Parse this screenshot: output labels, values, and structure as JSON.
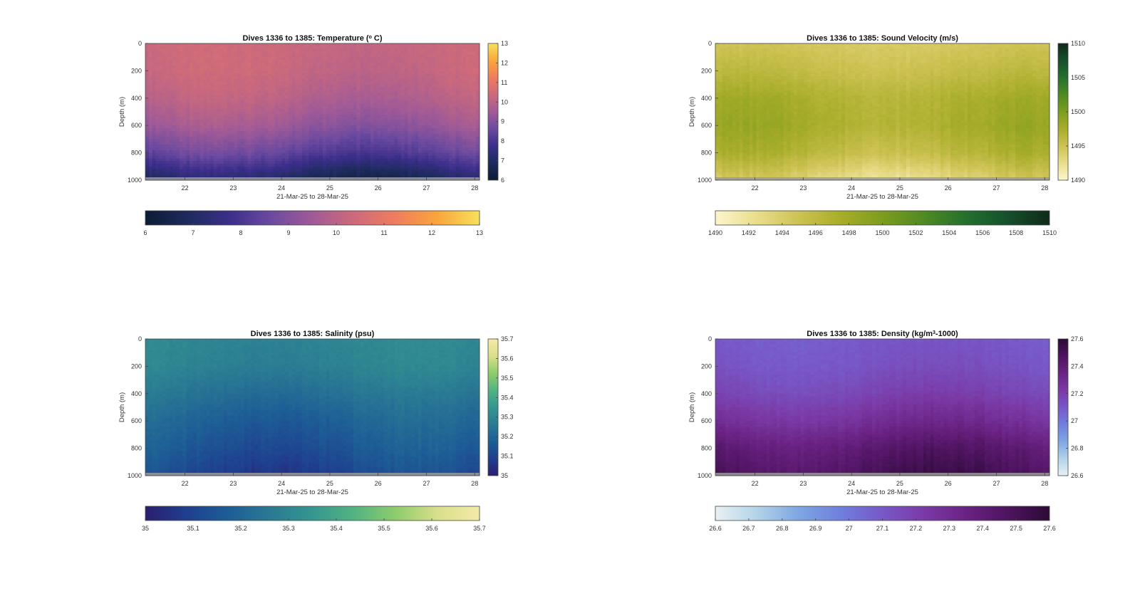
{
  "chart_data": [
    {
      "id": "temperature",
      "type": "heatmap",
      "title": "Dives 1336 to 1385: Temperature (° C)",
      "title_parts": {
        "pre": "Dives 1336 to 1385: Temperature (",
        "sup": "o",
        "post": " C)"
      },
      "xlabel": "21-Mar-25 to 28-Mar-25",
      "ylabel": "Depth (m)",
      "x_ticks": [
        "22",
        "23",
        "24",
        "25",
        "26",
        "27",
        "28"
      ],
      "x_tick_values": [
        22,
        23,
        24,
        25,
        26,
        27,
        28
      ],
      "xlim": [
        21.18,
        28.1
      ],
      "y_ticks": [
        "0",
        "200",
        "400",
        "600",
        "800",
        "1000"
      ],
      "y_tick_values": [
        0,
        200,
        400,
        600,
        800,
        1000
      ],
      "ylim": [
        0,
        1000
      ],
      "colorbar_ticks": [
        "6",
        "7",
        "8",
        "9",
        "10",
        "11",
        "12",
        "13"
      ],
      "horizontal_colorbar_ticks": [
        "6",
        "7",
        "8",
        "9",
        "10",
        "11",
        "12",
        "13"
      ],
      "clim": [
        6,
        13
      ],
      "colormap": [
        "#0d1c33",
        "#1c2b5c",
        "#3b2e8a",
        "#6b4aa0",
        "#a05a97",
        "#cd6a7b",
        "#ef7d5d",
        "#f9a63c",
        "#f7e15c"
      ],
      "depth_profile": [
        {
          "depth": 0,
          "value": 10.3
        },
        {
          "depth": 200,
          "value": 10.25
        },
        {
          "depth": 400,
          "value": 9.95
        },
        {
          "depth": 600,
          "value": 9.4
        },
        {
          "depth": 800,
          "value": 8.4
        },
        {
          "depth": 1000,
          "value": 6.8
        }
      ]
    },
    {
      "id": "sound_velocity",
      "type": "heatmap",
      "title": "Dives 1336 to 1385: Sound Velocity (m/s)",
      "xlabel": "21-Mar-25 to 28-Mar-25",
      "ylabel": "Depth (m)",
      "x_ticks": [
        "22",
        "23",
        "24",
        "25",
        "26",
        "27",
        "28"
      ],
      "x_tick_values": [
        22,
        23,
        24,
        25,
        26,
        27,
        28
      ],
      "xlim": [
        21.18,
        28.1
      ],
      "y_ticks": [
        "0",
        "200",
        "400",
        "600",
        "800",
        "1000"
      ],
      "y_tick_values": [
        0,
        200,
        400,
        600,
        800,
        1000
      ],
      "ylim": [
        0,
        1000
      ],
      "colorbar_ticks": [
        "1490",
        "1495",
        "1500",
        "1505",
        "1510"
      ],
      "colorbar_tick_values": [
        1490,
        1495,
        1500,
        1505,
        1510
      ],
      "horizontal_colorbar_ticks": [
        "1490",
        "1492",
        "1494",
        "1496",
        "1498",
        "1500",
        "1502",
        "1504",
        "1506",
        "1508",
        "1510"
      ],
      "clim": [
        1490,
        1510
      ],
      "colormap": [
        "#fdf5cc",
        "#e9dd8c",
        "#cdc253",
        "#a8ad2a",
        "#7d9c1e",
        "#4f8a23",
        "#24702e",
        "#154f2b",
        "#0f2a1a"
      ],
      "depth_profile": [
        {
          "depth": 0,
          "value": 1494.5
        },
        {
          "depth": 200,
          "value": 1495.6
        },
        {
          "depth": 400,
          "value": 1497.2
        },
        {
          "depth": 600,
          "value": 1497.6
        },
        {
          "depth": 800,
          "value": 1496.3
        },
        {
          "depth": 1000,
          "value": 1493.2
        }
      ]
    },
    {
      "id": "salinity",
      "type": "heatmap",
      "title": "Dives 1336 to 1385: Salinity (psu)",
      "xlabel": "21-Mar-25 to 28-Mar-25",
      "ylabel": "Depth (m)",
      "x_ticks": [
        "22",
        "23",
        "24",
        "25",
        "26",
        "27",
        "28"
      ],
      "x_tick_values": [
        22,
        23,
        24,
        25,
        26,
        27,
        28
      ],
      "xlim": [
        21.18,
        28.1
      ],
      "y_ticks": [
        "0",
        "200",
        "400",
        "600",
        "800",
        "1000"
      ],
      "y_tick_values": [
        0,
        200,
        400,
        600,
        800,
        1000
      ],
      "ylim": [
        0,
        1000
      ],
      "colorbar_ticks": [
        "35",
        "35.1",
        "35.2",
        "35.3",
        "35.4",
        "35.5",
        "35.6",
        "35.7"
      ],
      "horizontal_colorbar_ticks": [
        "35",
        "35.1",
        "35.2",
        "35.3",
        "35.4",
        "35.5",
        "35.6",
        "35.7"
      ],
      "clim": [
        35,
        35.7
      ],
      "colormap": [
        "#2c1e6e",
        "#1f3f8f",
        "#1d5e96",
        "#2a7a93",
        "#359690",
        "#52b382",
        "#8fcc6c",
        "#d9df8a",
        "#f4eaa8"
      ],
      "depth_profile": [
        {
          "depth": 0,
          "value": 35.3
        },
        {
          "depth": 200,
          "value": 35.29
        },
        {
          "depth": 400,
          "value": 35.24
        },
        {
          "depth": 600,
          "value": 35.19
        },
        {
          "depth": 800,
          "value": 35.15
        },
        {
          "depth": 1000,
          "value": 35.1
        }
      ]
    },
    {
      "id": "density",
      "type": "heatmap",
      "title": "Dives 1336 to 1385: Density (kg/m³-1000)",
      "title_parts": {
        "pre": "Dives 1336 to 1385: Density (kg/m",
        "sup": "3",
        "post": "-1000)"
      },
      "xlabel": "21-Mar-25 to 28-Mar-25",
      "ylabel": "Depth (m)",
      "x_ticks": [
        "22",
        "23",
        "24",
        "25",
        "26",
        "27",
        "28"
      ],
      "x_tick_values": [
        22,
        23,
        24,
        25,
        26,
        27,
        28
      ],
      "xlim": [
        21.18,
        28.1
      ],
      "y_ticks": [
        "0",
        "200",
        "400",
        "600",
        "800",
        "1000"
      ],
      "y_tick_values": [
        0,
        200,
        400,
        600,
        800,
        1000
      ],
      "ylim": [
        0,
        1000
      ],
      "colorbar_ticks": [
        "26.6",
        "26.8",
        "27",
        "27.2",
        "27.4",
        "27.6"
      ],
      "colorbar_tick_values": [
        26.6,
        26.8,
        27.0,
        27.2,
        27.4,
        27.6
      ],
      "horizontal_colorbar_ticks": [
        "26.6",
        "26.7",
        "26.8",
        "26.9",
        "27",
        "27.1",
        "27.2",
        "27.3",
        "27.4",
        "27.5",
        "27.6"
      ],
      "clim": [
        26.6,
        27.6
      ],
      "colormap": [
        "#e9f1f4",
        "#b2d3e7",
        "#7ea6e2",
        "#6f7fdd",
        "#7858c8",
        "#7a3aa6",
        "#6a2283",
        "#4e1460",
        "#2c0a35"
      ],
      "depth_profile": [
        {
          "depth": 0,
          "value": 27.1
        },
        {
          "depth": 200,
          "value": 27.12
        },
        {
          "depth": 400,
          "value": 27.18
        },
        {
          "depth": 600,
          "value": 27.28
        },
        {
          "depth": 800,
          "value": 27.42
        },
        {
          "depth": 1000,
          "value": 27.5
        }
      ]
    }
  ]
}
